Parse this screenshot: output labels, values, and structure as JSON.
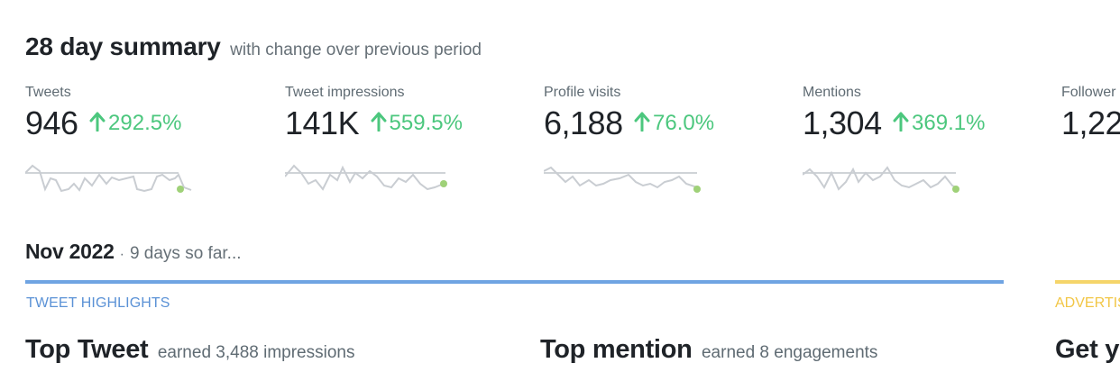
{
  "summary": {
    "title": "28 day summary",
    "subtitle": "with change over previous period"
  },
  "metrics": [
    {
      "label": "Tweets",
      "value": "946",
      "change": "292.5%",
      "trend": "up"
    },
    {
      "label": "Tweet impressions",
      "value": "141K",
      "change": "559.5%",
      "trend": "up"
    },
    {
      "label": "Profile visits",
      "value": "6,188",
      "change": "76.0%",
      "trend": "up"
    },
    {
      "label": "Mentions",
      "value": "1,304",
      "change": "369.1%",
      "trend": "up"
    },
    {
      "label": "Follower",
      "value": "1,22",
      "trend": "up"
    }
  ],
  "month": {
    "title": "Nov 2022",
    "separator": "·",
    "subtitle": "9 days so far..."
  },
  "sections": {
    "highlights_label": "TWEET HIGHLIGHTS",
    "advertising_label": "ADVERTIS"
  },
  "top_tweet": {
    "title": "Top Tweet",
    "subtitle": "earned 3,488 impressions"
  },
  "top_mention": {
    "title": "Top mention",
    "subtitle": "earned 8 engagements"
  },
  "get_started": {
    "title": "Get yo"
  },
  "colors": {
    "positive": "#4cc77e",
    "sparkline": "#c9cdd2",
    "highlights_accent": "#6fa4e2",
    "advertising_accent": "#f5d56a"
  },
  "icons": {
    "trend_up": "arrow-up-icon"
  }
}
